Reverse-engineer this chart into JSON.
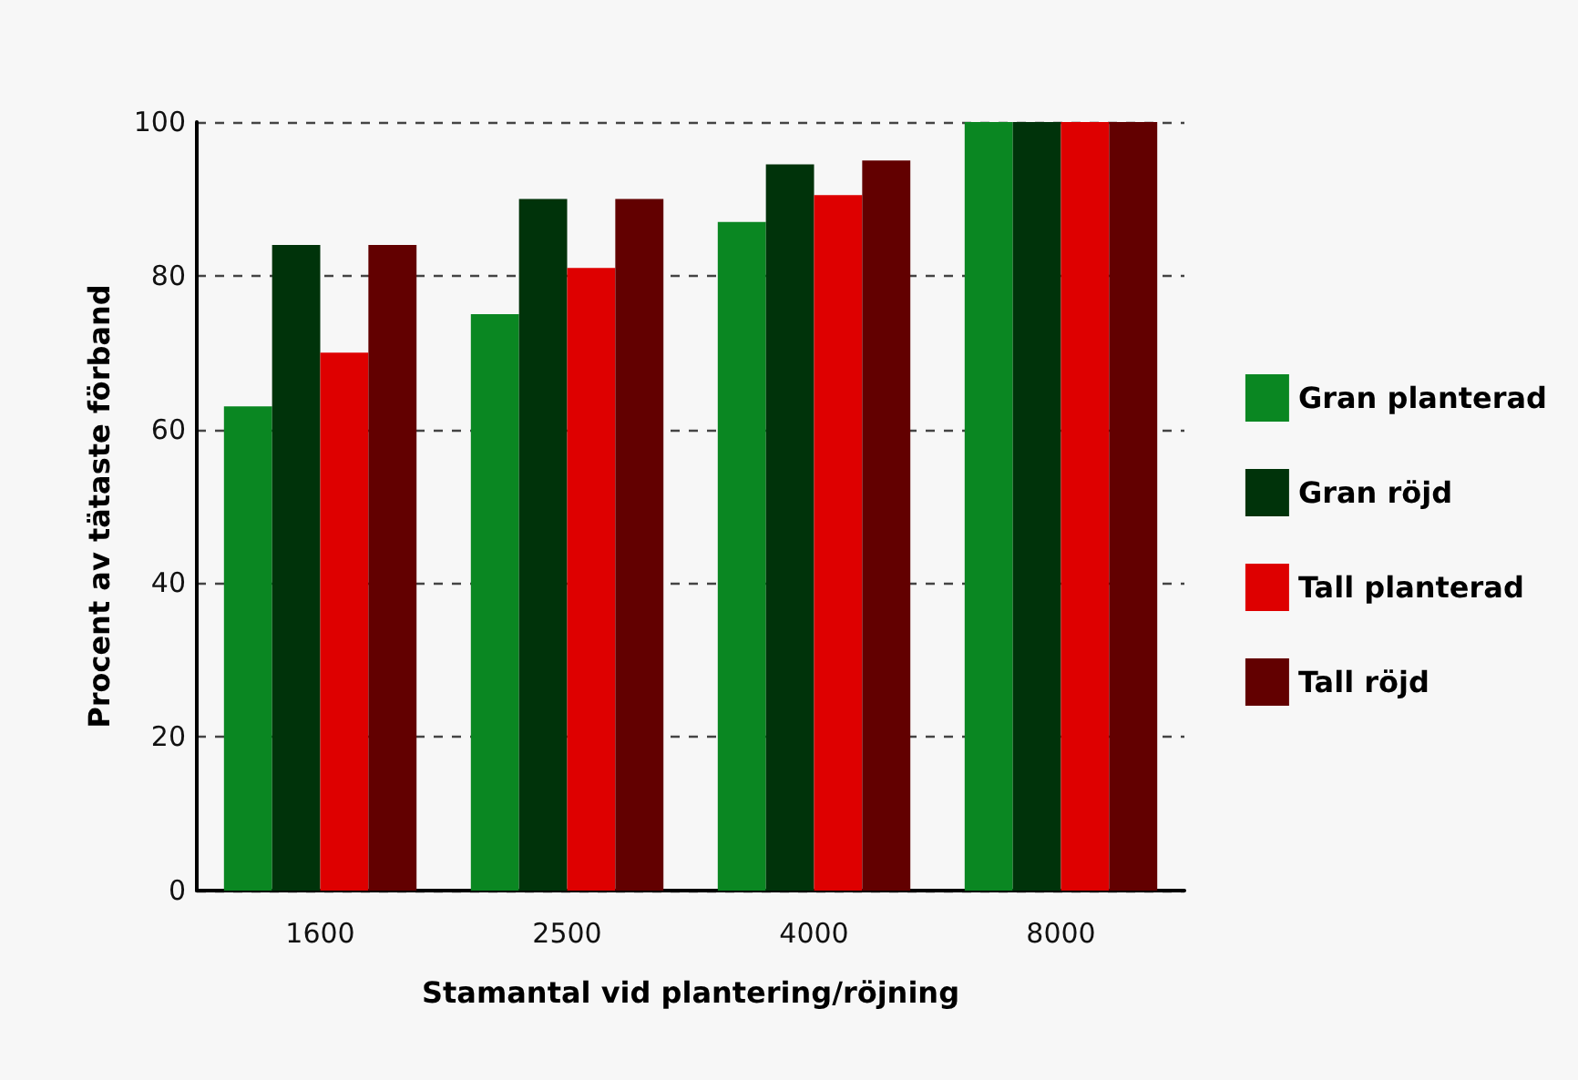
{
  "chart_data": {
    "type": "bar",
    "xlabel": "Stamantal vid plantering/röjning",
    "ylabel": "Procent av tätaste förband",
    "categories": [
      "1600",
      "2500",
      "4000",
      "8000"
    ],
    "series": [
      {
        "name": "Gran planterad",
        "color": "#0a8722",
        "values": [
          63,
          75,
          87,
          100
        ]
      },
      {
        "name": "Gran röjd",
        "color": "#00330a",
        "values": [
          84,
          90,
          94.5,
          100
        ]
      },
      {
        "name": "Tall planterad",
        "color": "#de0000",
        "values": [
          70,
          81,
          90.5,
          100
        ]
      },
      {
        "name": "Tall röjd",
        "color": "#620000",
        "values": [
          84,
          90,
          95,
          100
        ]
      }
    ],
    "ylim": [
      0,
      100
    ],
    "yticks": [
      0,
      20,
      40,
      60,
      80,
      100
    ],
    "grid": "y",
    "legend": "right"
  }
}
